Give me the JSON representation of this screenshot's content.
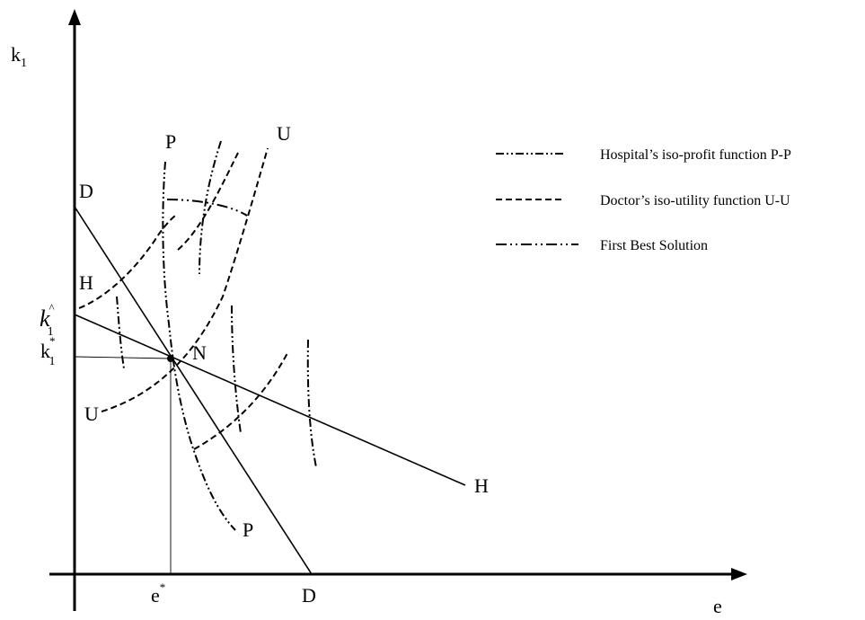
{
  "axes": {
    "y_label": "k",
    "y_label_sub": "1",
    "x_label": "e"
  },
  "points": {
    "D_top": "D",
    "D_bottom": "D",
    "H_top": "H",
    "H_right": "H",
    "P_top": "P",
    "P_bottom": "P",
    "U_top": "U",
    "U_left": "U",
    "N": "N"
  },
  "ticks": {
    "k1_hat_base": "k",
    "k1_hat_sub": "1",
    "k1_hat_sup": "^",
    "k1_star_base": "k",
    "k1_star_sub": "1",
    "k1_star_sup": "*",
    "e_star_base": "e",
    "e_star_sup": "*"
  },
  "legend": [
    {
      "style": "dash-dot-dot",
      "label": "Hospital’s iso-profit function P-P"
    },
    {
      "style": "dashed",
      "label": "Doctor’s iso-utility function U-U"
    },
    {
      "style": "dash-dot",
      "label": "First Best Solution"
    }
  ]
}
